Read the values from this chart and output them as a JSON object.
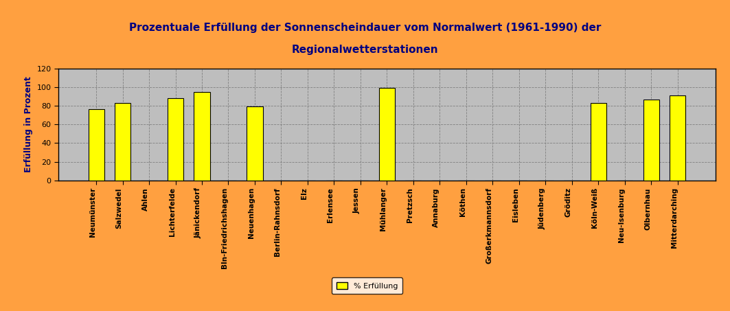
{
  "title_line1": "Prozentuale Erfüllung der Sonnenscheindauer vom Normalwert (1961-1990) der",
  "title_line2": "Regionalwetterstationen",
  "ylabel": "Erfüllung in Prozent",
  "legend_label": "% Erfüllung",
  "categories": [
    "Neumünster",
    "Salzwedel",
    "Ahlen",
    "Lichterfelde",
    "Jänickendorf",
    "Bln-Friedrichshagen",
    "Neuenhagen",
    "Berlin-Rahnsdorf",
    "Elz",
    "Erlensee",
    "Jessen",
    "Mühlanger",
    "Pretzsch",
    "Annaburg",
    "Köthen",
    "Großerkmannsdorf",
    "Eisleben",
    "Jüdenberg",
    "Gröditz",
    "Köln-Weiß",
    "Neu-Isenburg",
    "Olbernhau",
    "Mitterdarching"
  ],
  "values": [
    76,
    83,
    0,
    88,
    95,
    0,
    79,
    0,
    0,
    0,
    0,
    99,
    0,
    0,
    0,
    0,
    0,
    0,
    0,
    83,
    0,
    87,
    91
  ],
  "bar_color": "#FFFF00",
  "bar_edge_color": "#000000",
  "background_color": "#FFA040",
  "plot_bg_color": "#BEBEBE",
  "title_color": "#000080",
  "ylabel_color": "#000080",
  "ylim": [
    0,
    120
  ],
  "yticks": [
    0,
    20,
    40,
    60,
    80,
    100,
    120
  ],
  "grid_color": "#808080",
  "legend_bg": "#FFFFFF",
  "legend_edge": "#000000",
  "figsize": [
    10.63,
    4.53
  ],
  "dpi": 100
}
